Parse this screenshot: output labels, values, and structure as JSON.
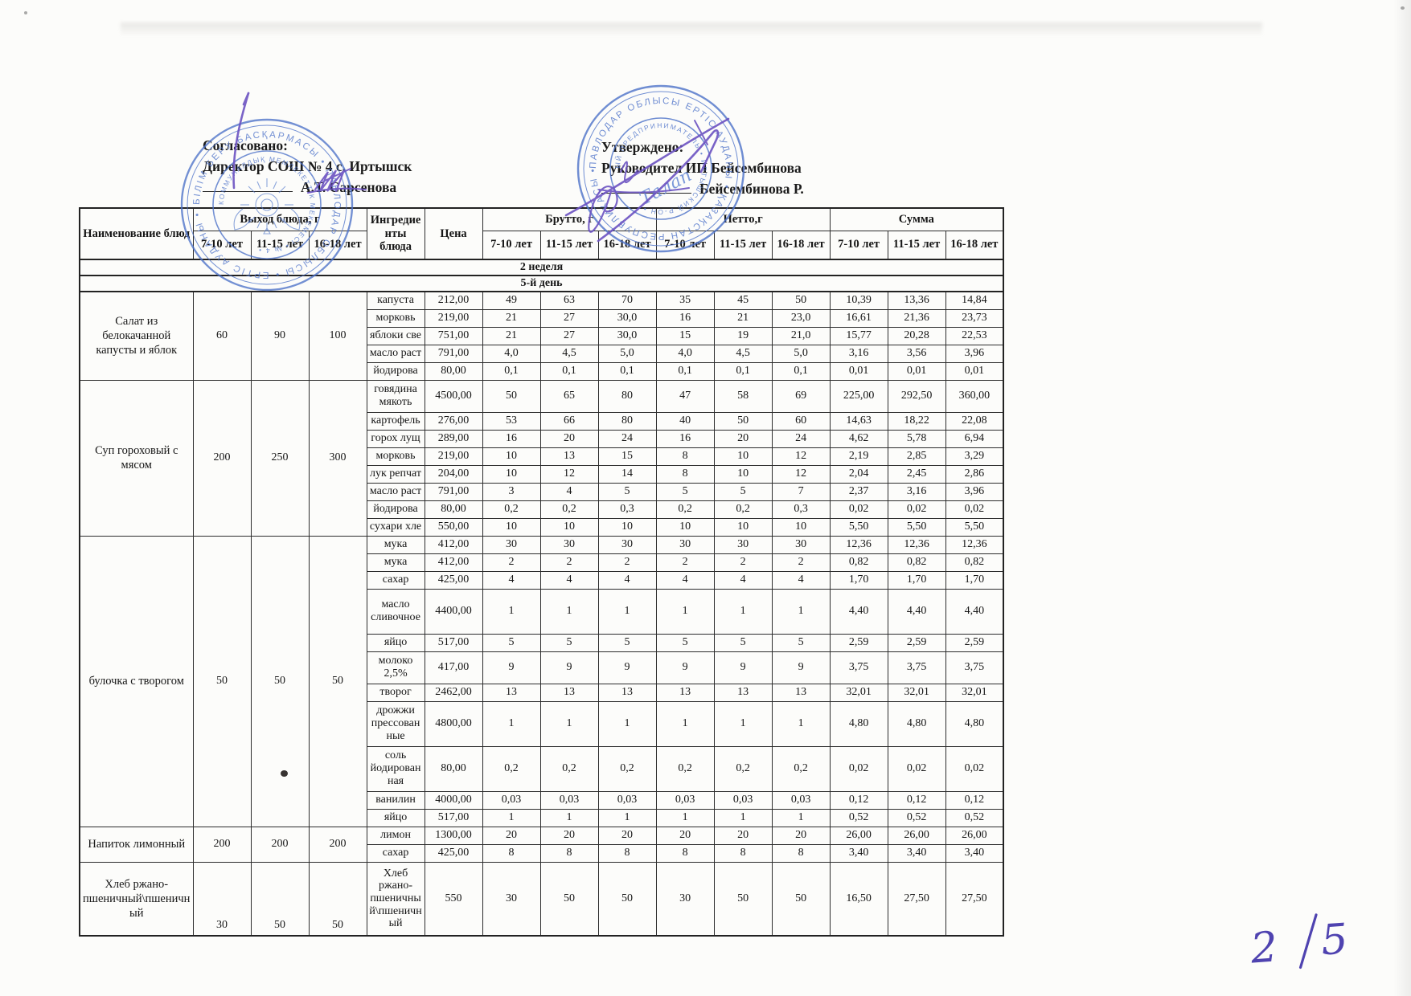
{
  "approvals": {
    "left": {
      "line1": "Согласовано:",
      "line2": "Директор СОШ № 4 с. Иртышск",
      "signatory": "А.Т. Сарсенова"
    },
    "right": {
      "line1": "Утверждено:",
      "line2": "Руководител ИП Бейсембинова",
      "signatory": "Бейсембинова Р."
    }
  },
  "table": {
    "headers": {
      "dish": "Наименование блюд",
      "output": "Выход блюда, г",
      "ingredients": "Ингредиенты блюда",
      "price": "Цена",
      "gross": "Брутто, г",
      "net": "Нетто,г",
      "sum": "Сумма",
      "ages": [
        "7-10 лет",
        "11-15 лет",
        "16-18 лет"
      ]
    },
    "week_label": "2 неделя",
    "day_label": "5-й день",
    "groups": [
      {
        "dish": "Салат из белокачанной капусты и яблок",
        "output": [
          "60",
          "90",
          "100"
        ],
        "rows": [
          {
            "ing": "капуста",
            "price": "212,00",
            "size": "s",
            "vals": [
              "49",
              "63",
              "70",
              "35",
              "45",
              "50",
              "10,39",
              "13,36",
              "14,84"
            ]
          },
          {
            "ing": "морковь",
            "price": "219,00",
            "size": "s",
            "vals": [
              "21",
              "27",
              "30,0",
              "16",
              "21",
              "23,0",
              "16,61",
              "21,36",
              "23,73"
            ]
          },
          {
            "ing": "яблоки све",
            "price": "751,00",
            "size": "s",
            "vals": [
              "21",
              "27",
              "30,0",
              "15",
              "19",
              "21,0",
              "15,77",
              "20,28",
              "22,53"
            ]
          },
          {
            "ing": "масло раст",
            "price": "791,00",
            "size": "s",
            "vals": [
              "4,0",
              "4,5",
              "5,0",
              "4,0",
              "4,5",
              "5,0",
              "3,16",
              "3,56",
              "3,96"
            ]
          },
          {
            "ing": "йодирова",
            "price": "80,00",
            "size": "s",
            "vals": [
              "0,1",
              "0,1",
              "0,1",
              "0,1",
              "0,1",
              "0,1",
              "0,01",
              "0,01",
              "0,01"
            ]
          }
        ]
      },
      {
        "dish": "Суп гороховый с мясом",
        "output": [
          "200",
          "250",
          "300"
        ],
        "rows": [
          {
            "ing": "говядина мякоть",
            "price": "4500,00",
            "size": "m",
            "vals": [
              "50",
              "65",
              "80",
              "47",
              "58",
              "69",
              "225,00",
              "292,50",
              "360,00"
            ]
          },
          {
            "ing": "картофель",
            "price": "276,00",
            "size": "s",
            "vals": [
              "53",
              "66",
              "80",
              "40",
              "50",
              "60",
              "14,63",
              "18,22",
              "22,08"
            ]
          },
          {
            "ing": "горох лущ",
            "price": "289,00",
            "size": "s",
            "vals": [
              "16",
              "20",
              "24",
              "16",
              "20",
              "24",
              "4,62",
              "5,78",
              "6,94"
            ]
          },
          {
            "ing": "морковь",
            "price": "219,00",
            "size": "s",
            "vals": [
              "10",
              "13",
              "15",
              "8",
              "10",
              "12",
              "2,19",
              "2,85",
              "3,29"
            ]
          },
          {
            "ing": "лук репчат",
            "price": "204,00",
            "size": "s",
            "vals": [
              "10",
              "12",
              "14",
              "8",
              "10",
              "12",
              "2,04",
              "2,45",
              "2,86"
            ]
          },
          {
            "ing": "масло раст",
            "price": "791,00",
            "size": "s",
            "vals": [
              "3",
              "4",
              "5",
              "5",
              "5",
              "7",
              "2,37",
              "3,16",
              "3,96"
            ]
          },
          {
            "ing": "йодирова",
            "price": "80,00",
            "size": "s",
            "vals": [
              "0,2",
              "0,2",
              "0,3",
              "0,2",
              "0,2",
              "0,3",
              "0,02",
              "0,02",
              "0,02"
            ]
          },
          {
            "ing": "сухари хле",
            "price": "550,00",
            "size": "s",
            "vals": [
              "10",
              "10",
              "10",
              "10",
              "10",
              "10",
              "5,50",
              "5,50",
              "5,50"
            ]
          }
        ]
      },
      {
        "dish": "булочка с творогом",
        "output": [
          "50",
          "50",
          "50"
        ],
        "rows": [
          {
            "ing": "мука",
            "price": "412,00",
            "size": "s",
            "vals": [
              "30",
              "30",
              "30",
              "30",
              "30",
              "30",
              "12,36",
              "12,36",
              "12,36"
            ]
          },
          {
            "ing": "мука",
            "price": "412,00",
            "size": "s",
            "vals": [
              "2",
              "2",
              "2",
              "2",
              "2",
              "2",
              "0,82",
              "0,82",
              "0,82"
            ]
          },
          {
            "ing": "сахар",
            "price": "425,00",
            "size": "s",
            "vals": [
              "4",
              "4",
              "4",
              "4",
              "4",
              "4",
              "1,70",
              "1,70",
              "1,70"
            ]
          },
          {
            "ing": "масло сливочное",
            "price": "4400,00",
            "size": "l",
            "vals": [
              "1",
              "1",
              "1",
              "1",
              "1",
              "1",
              "4,40",
              "4,40",
              "4,40"
            ]
          },
          {
            "ing": "яйцо",
            "price": "517,00",
            "size": "s",
            "vals": [
              "5",
              "5",
              "5",
              "5",
              "5",
              "5",
              "2,59",
              "2,59",
              "2,59"
            ]
          },
          {
            "ing": "молоко 2,5%",
            "price": "417,00",
            "size": "m",
            "vals": [
              "9",
              "9",
              "9",
              "9",
              "9",
              "9",
              "3,75",
              "3,75",
              "3,75"
            ]
          },
          {
            "ing": "творог",
            "price": "2462,00",
            "size": "s",
            "vals": [
              "13",
              "13",
              "13",
              "13",
              "13",
              "13",
              "32,01",
              "32,01",
              "32,01"
            ]
          },
          {
            "ing": "дрожжи прессованные",
            "price": "4800,00",
            "size": "l",
            "vals": [
              "1",
              "1",
              "1",
              "1",
              "1",
              "1",
              "4,80",
              "4,80",
              "4,80"
            ]
          },
          {
            "ing": "соль йодированная",
            "price": "80,00",
            "size": "l",
            "vals": [
              "0,2",
              "0,2",
              "0,2",
              "0,2",
              "0,2",
              "0,2",
              "0,02",
              "0,02",
              "0,02"
            ]
          },
          {
            "ing": "ванилин",
            "price": "4000,00",
            "size": "s",
            "vals": [
              "0,03",
              "0,03",
              "0,03",
              "0,03",
              "0,03",
              "0,03",
              "0,12",
              "0,12",
              "0,12"
            ]
          },
          {
            "ing": "яйцо",
            "price": "517,00",
            "size": "s",
            "vals": [
              "1",
              "1",
              "1",
              "1",
              "1",
              "1",
              "0,52",
              "0,52",
              "0,52"
            ]
          }
        ]
      },
      {
        "dish": "Напиток лимонный",
        "output": [
          "200",
          "200",
          "200"
        ],
        "rows": [
          {
            "ing": "лимон",
            "price": "1300,00",
            "size": "s",
            "vals": [
              "20",
              "20",
              "20",
              "20",
              "20",
              "20",
              "26,00",
              "26,00",
              "26,00"
            ]
          },
          {
            "ing": "сахар",
            "price": "425,00",
            "size": "s",
            "vals": [
              "8",
              "8",
              "8",
              "8",
              "8",
              "8",
              "3,40",
              "3,40",
              "3,40"
            ]
          }
        ]
      },
      {
        "dish": "Хлеб ржано-пшеничный\\пшеничный",
        "output": [
          "30",
          "50",
          "50"
        ],
        "output_valign": "bottom",
        "rows": [
          {
            "ing": "Хлеб ржано-пшеничный\\пшеничный",
            "price": "550",
            "size": "xl",
            "vals": [
              "30",
              "50",
              "50",
              "30",
              "50",
              "50",
              "16,50",
              "27,50",
              "27,50"
            ]
          }
        ]
      }
    ]
  },
  "stamps": {
    "school": {
      "ring_text": "БІЛІМ БЕРУ БАСҚАРМАСЫ • ПАВЛОДАР ОБЛЫСЫ • ЕРТІС АУДАНЫ •",
      "inner_text": "КОММУНАЛДЫҚ МЕМЛЕКЕТТІК МЕКЕМЕСІ • № 4 •"
    },
    "company": {
      "ring_text": "ПАВЛОДАР ОБЛЫСЫ ЕРТІС АУДАНЫ • ҚАЗАҚСТАН РЕСПУБЛИКАСЫ •",
      "inner_text": "ЫЙ ПРЕДПРИНИМАТЕЛЬ • ИРТЫШСКИЙ Р-ОН •",
      "center_script": "Талап"
    }
  },
  "handwritten": {
    "page_number": "2 /5"
  }
}
